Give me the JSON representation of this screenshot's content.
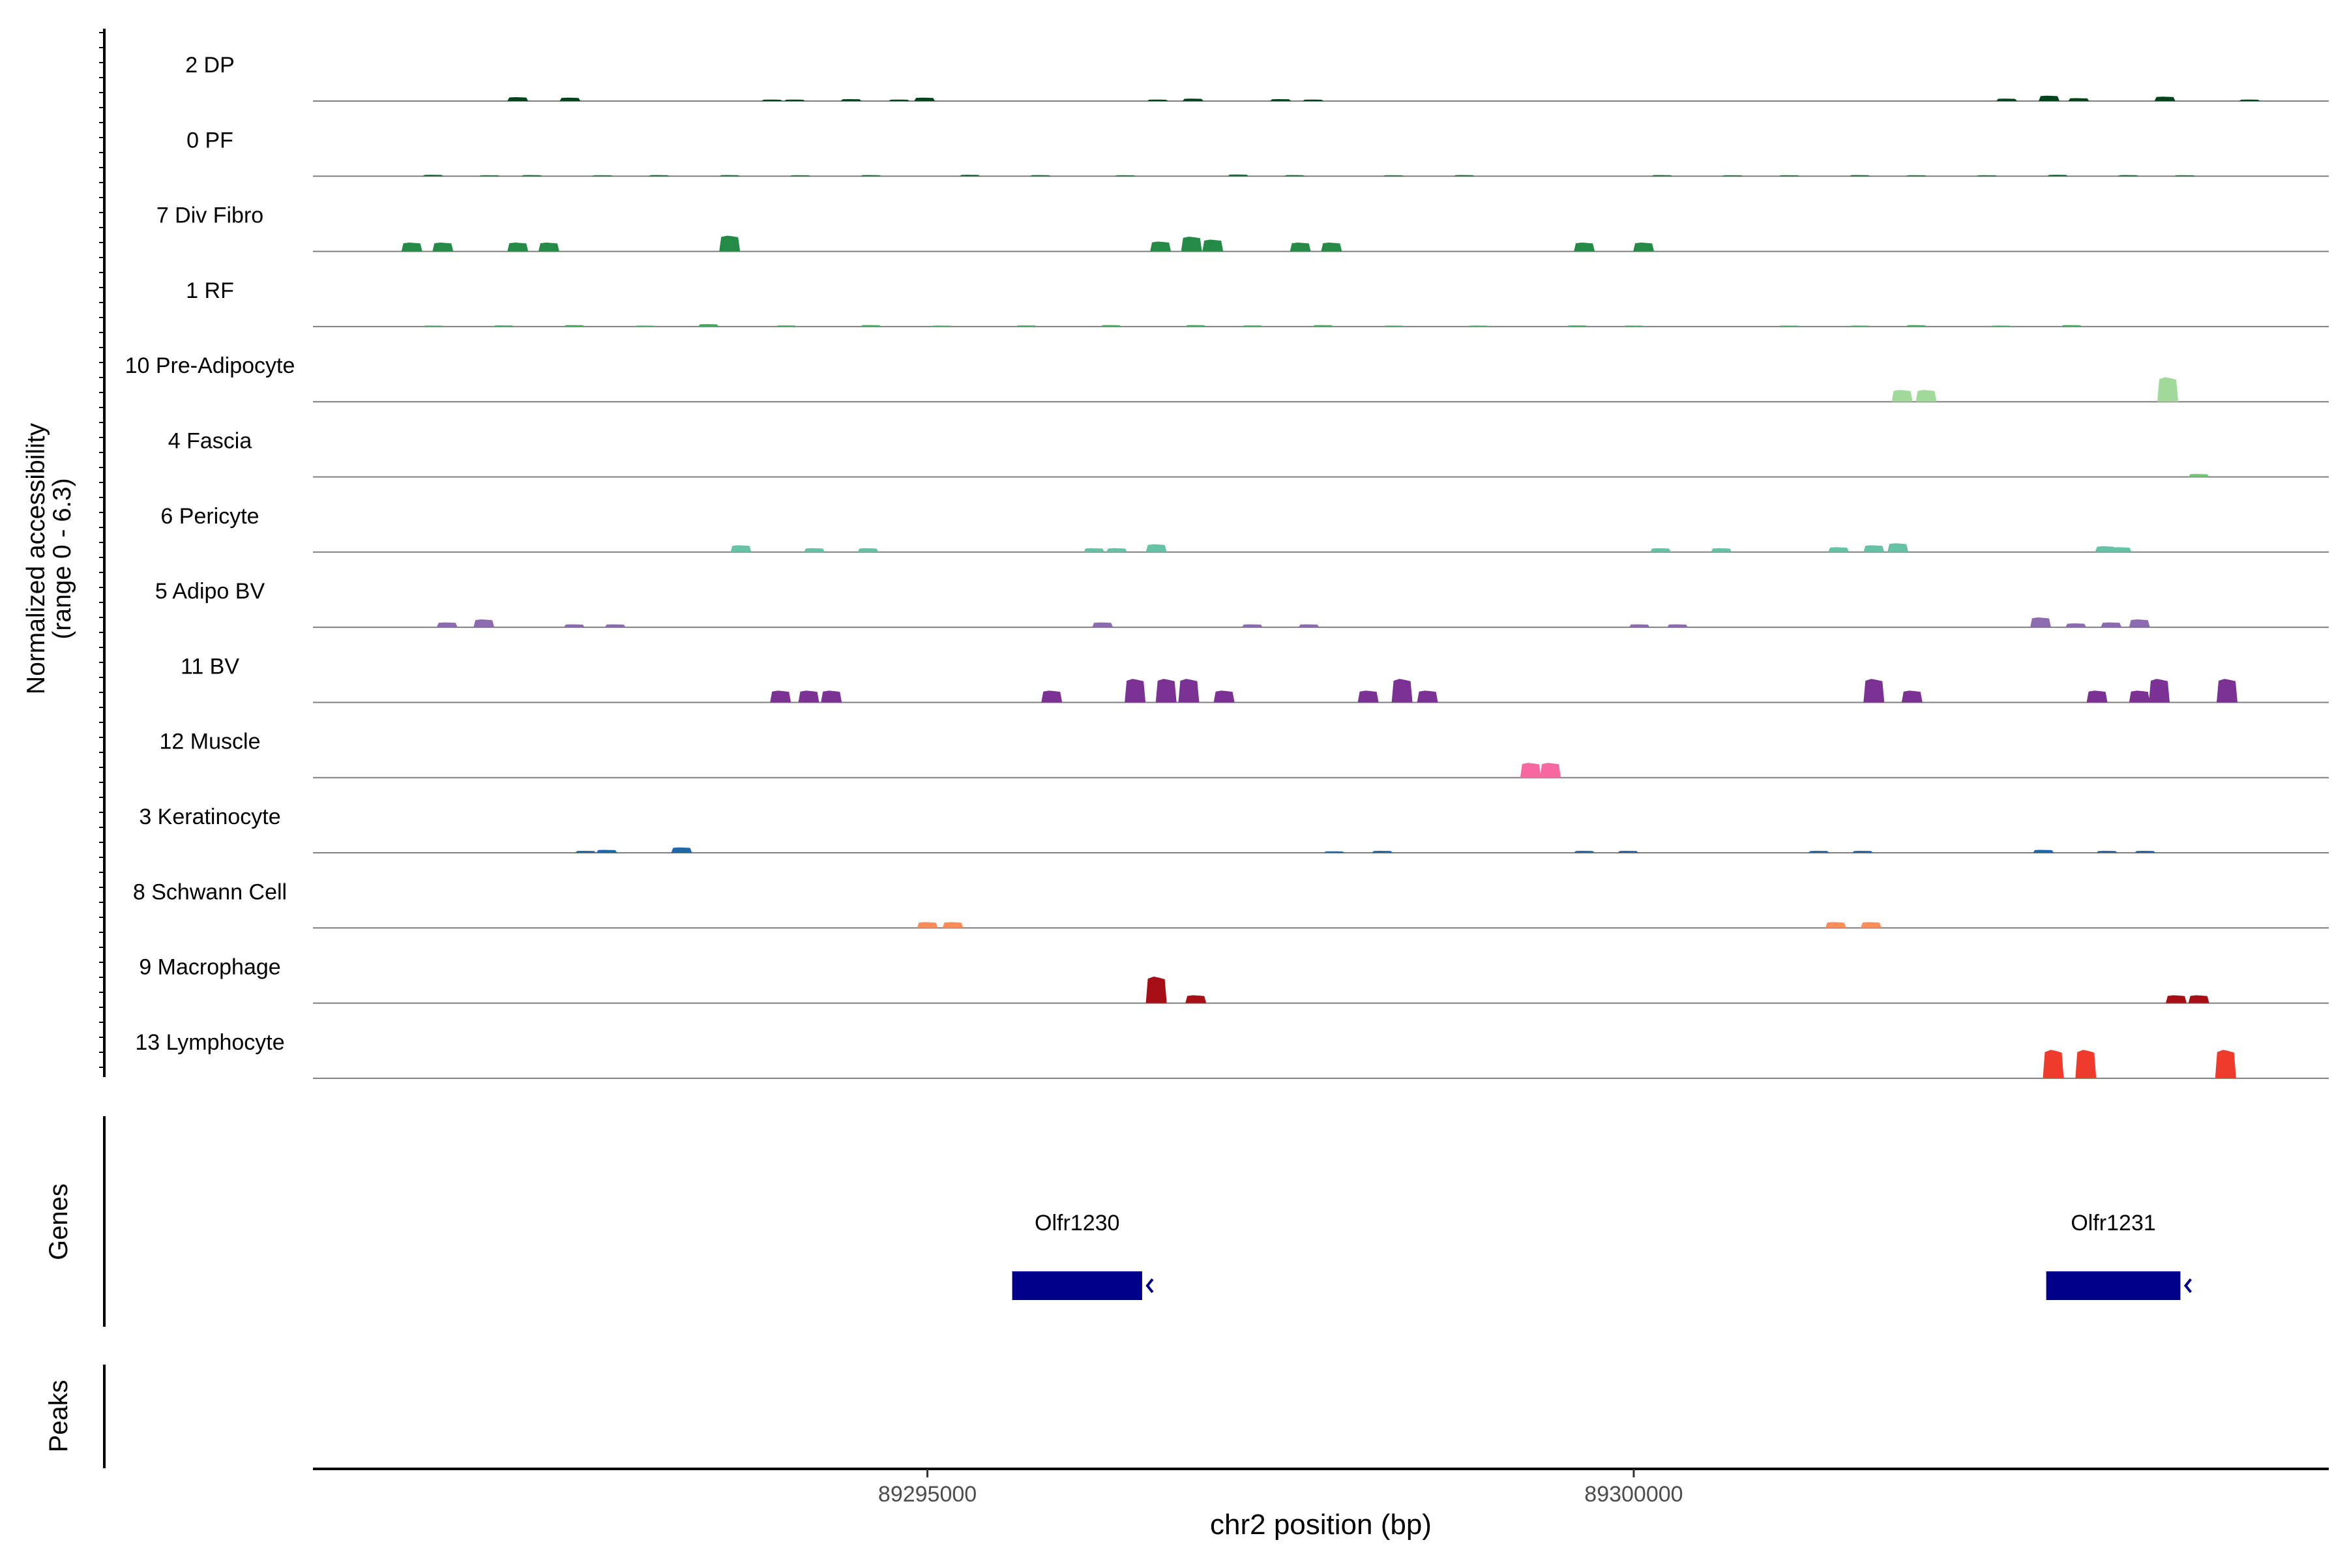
{
  "chart_data": {
    "type": "area",
    "title": "",
    "xlabel": "chr2 position (bp)",
    "ylabel_line1": "Normalized accessibility",
    "ylabel_line2": "(range 0 - 6.3)",
    "genes_label": "Genes",
    "peaks_label": "Peaks",
    "xlim": [
      89290650,
      89304920
    ],
    "ylim": [
      0,
      6.3
    ],
    "xticks": [
      89295000,
      89300000
    ],
    "xtick_labels": [
      "89295000",
      "89300000"
    ],
    "tracks": [
      {
        "name": "2 DP",
        "color": "#00441b",
        "peaks": [
          [
            89292100,
            0.4
          ],
          [
            89292470,
            0.35
          ],
          [
            89293900,
            0.15
          ],
          [
            89294060,
            0.15
          ],
          [
            89294460,
            0.2
          ],
          [
            89294800,
            0.15
          ],
          [
            89294980,
            0.35
          ],
          [
            89296630,
            0.15
          ],
          [
            89296880,
            0.25
          ],
          [
            89297500,
            0.2
          ],
          [
            89297730,
            0.15
          ],
          [
            89302640,
            0.25
          ],
          [
            89302940,
            0.55
          ],
          [
            89303150,
            0.3
          ],
          [
            89303760,
            0.45
          ],
          [
            89304360,
            0.15
          ]
        ]
      },
      {
        "name": "0 PF",
        "color": "#1b6b3a",
        "peaks": [
          [
            89291500,
            0.15
          ],
          [
            89291900,
            0.1
          ],
          [
            89292200,
            0.12
          ],
          [
            89292700,
            0.1
          ],
          [
            89293100,
            0.12
          ],
          [
            89293600,
            0.12
          ],
          [
            89294100,
            0.1
          ],
          [
            89294600,
            0.12
          ],
          [
            89295300,
            0.15
          ],
          [
            89295800,
            0.12
          ],
          [
            89296400,
            0.1
          ],
          [
            89297200,
            0.18
          ],
          [
            89297600,
            0.12
          ],
          [
            89298300,
            0.1
          ],
          [
            89298800,
            0.12
          ],
          [
            89300200,
            0.12
          ],
          [
            89300700,
            0.1
          ],
          [
            89301100,
            0.1
          ],
          [
            89301600,
            0.12
          ],
          [
            89302000,
            0.1
          ],
          [
            89302500,
            0.1
          ],
          [
            89303000,
            0.15
          ],
          [
            89303500,
            0.12
          ],
          [
            89303900,
            0.1
          ]
        ]
      },
      {
        "name": "7 Div Fibro",
        "color": "#238b45",
        "peaks": [
          [
            89291350,
            0.9
          ],
          [
            89291570,
            0.9
          ],
          [
            89292100,
            0.9
          ],
          [
            89292320,
            0.9
          ],
          [
            89293600,
            1.6
          ],
          [
            89296650,
            1.0
          ],
          [
            89296870,
            1.5
          ],
          [
            89297020,
            1.2
          ],
          [
            89297640,
            0.9
          ],
          [
            89297860,
            0.9
          ],
          [
            89299650,
            0.9
          ],
          [
            89300070,
            0.9
          ]
        ]
      },
      {
        "name": "1 RF",
        "color": "#41ab5d",
        "peaks": [
          [
            89291500,
            0.1
          ],
          [
            89292000,
            0.12
          ],
          [
            89292500,
            0.15
          ],
          [
            89293000,
            0.1
          ],
          [
            89293450,
            0.25
          ],
          [
            89294000,
            0.12
          ],
          [
            89294600,
            0.15
          ],
          [
            89295100,
            0.1
          ],
          [
            89295700,
            0.12
          ],
          [
            89296300,
            0.15
          ],
          [
            89296900,
            0.15
          ],
          [
            89297300,
            0.12
          ],
          [
            89297800,
            0.15
          ],
          [
            89298300,
            0.1
          ],
          [
            89298900,
            0.1
          ],
          [
            89299600,
            0.12
          ],
          [
            89300000,
            0.1
          ],
          [
            89301100,
            0.1
          ],
          [
            89301600,
            0.1
          ],
          [
            89302000,
            0.15
          ],
          [
            89302600,
            0.1
          ],
          [
            89303100,
            0.15
          ]
        ]
      },
      {
        "name": "10 Pre-Adipocyte",
        "color": "#a1d99b",
        "peaks": [
          [
            89301900,
            1.2
          ],
          [
            89302070,
            1.2
          ],
          [
            89303780,
            2.5
          ]
        ]
      },
      {
        "name": "4 Fascia",
        "color": "#74c476",
        "peaks": [
          [
            89304000,
            0.3
          ]
        ]
      },
      {
        "name": "6 Pericyte",
        "color": "#66c2a5",
        "peaks": [
          [
            89293680,
            0.7
          ],
          [
            89294200,
            0.4
          ],
          [
            89294580,
            0.4
          ],
          [
            89296180,
            0.4
          ],
          [
            89296340,
            0.4
          ],
          [
            89296620,
            0.8
          ],
          [
            89300190,
            0.4
          ],
          [
            89300620,
            0.4
          ],
          [
            89301450,
            0.5
          ],
          [
            89301700,
            0.7
          ],
          [
            89301870,
            0.9
          ],
          [
            89303340,
            0.6
          ],
          [
            89303450,
            0.5
          ]
        ]
      },
      {
        "name": "5 Adipo BV",
        "color": "#8c6bb1",
        "peaks": [
          [
            89291600,
            0.5
          ],
          [
            89291860,
            0.8
          ],
          [
            89292500,
            0.3
          ],
          [
            89292790,
            0.3
          ],
          [
            89296240,
            0.5
          ],
          [
            89297300,
            0.3
          ],
          [
            89297700,
            0.3
          ],
          [
            89300040,
            0.3
          ],
          [
            89300310,
            0.3
          ],
          [
            89302880,
            1.0
          ],
          [
            89303130,
            0.4
          ],
          [
            89303380,
            0.5
          ],
          [
            89303580,
            0.8
          ]
        ]
      },
      {
        "name": "11 BV",
        "color": "#7b3294",
        "peaks": [
          [
            89293960,
            1.2
          ],
          [
            89294160,
            1.2
          ],
          [
            89294320,
            1.2
          ],
          [
            89295880,
            1.2
          ],
          [
            89296470,
            2.4
          ],
          [
            89296690,
            2.4
          ],
          [
            89296850,
            2.4
          ],
          [
            89297100,
            1.2
          ],
          [
            89298120,
            1.2
          ],
          [
            89298360,
            2.4
          ],
          [
            89298540,
            1.2
          ],
          [
            89301700,
            2.4
          ],
          [
            89301970,
            1.2
          ],
          [
            89303280,
            1.2
          ],
          [
            89303580,
            1.2
          ],
          [
            89303720,
            2.4
          ],
          [
            89304200,
            2.4
          ]
        ]
      },
      {
        "name": "12 Muscle",
        "color": "#f768a1",
        "peaks": [
          [
            89299270,
            1.5
          ],
          [
            89299410,
            1.5
          ]
        ]
      },
      {
        "name": "3 Keratinocyte",
        "color": "#2166ac",
        "peaks": [
          [
            89292580,
            0.2
          ],
          [
            89292730,
            0.3
          ],
          [
            89293260,
            0.55
          ],
          [
            89297880,
            0.15
          ],
          [
            89298220,
            0.2
          ],
          [
            89299650,
            0.2
          ],
          [
            89299960,
            0.2
          ],
          [
            89301310,
            0.2
          ],
          [
            89301620,
            0.2
          ],
          [
            89302900,
            0.3
          ],
          [
            89303350,
            0.2
          ],
          [
            89303620,
            0.2
          ]
        ]
      },
      {
        "name": "8 Schwann Cell",
        "color": "#fc8d59",
        "peaks": [
          [
            89295000,
            0.6
          ],
          [
            89295180,
            0.6
          ],
          [
            89301430,
            0.6
          ],
          [
            89301680,
            0.6
          ]
        ]
      },
      {
        "name": "9 Macrophage",
        "color": "#a50f15",
        "peaks": [
          [
            89296620,
            2.7
          ],
          [
            89296900,
            0.8
          ],
          [
            89303840,
            0.8
          ],
          [
            89304000,
            0.8
          ]
        ]
      },
      {
        "name": "13 Lymphocyte",
        "color": "#ef3b2c",
        "peaks": [
          [
            89302970,
            2.9
          ],
          [
            89303200,
            2.9
          ],
          [
            89304190,
            2.9
          ]
        ]
      }
    ],
    "genes": [
      {
        "name": "Olfr1230",
        "start": 89295600,
        "end": 89296520,
        "strand": "-",
        "color": "#00008b"
      },
      {
        "name": "Olfr1231",
        "start": 89302920,
        "end": 89303870,
        "strand": "-",
        "color": "#00008b"
      }
    ],
    "peaks_track": []
  }
}
